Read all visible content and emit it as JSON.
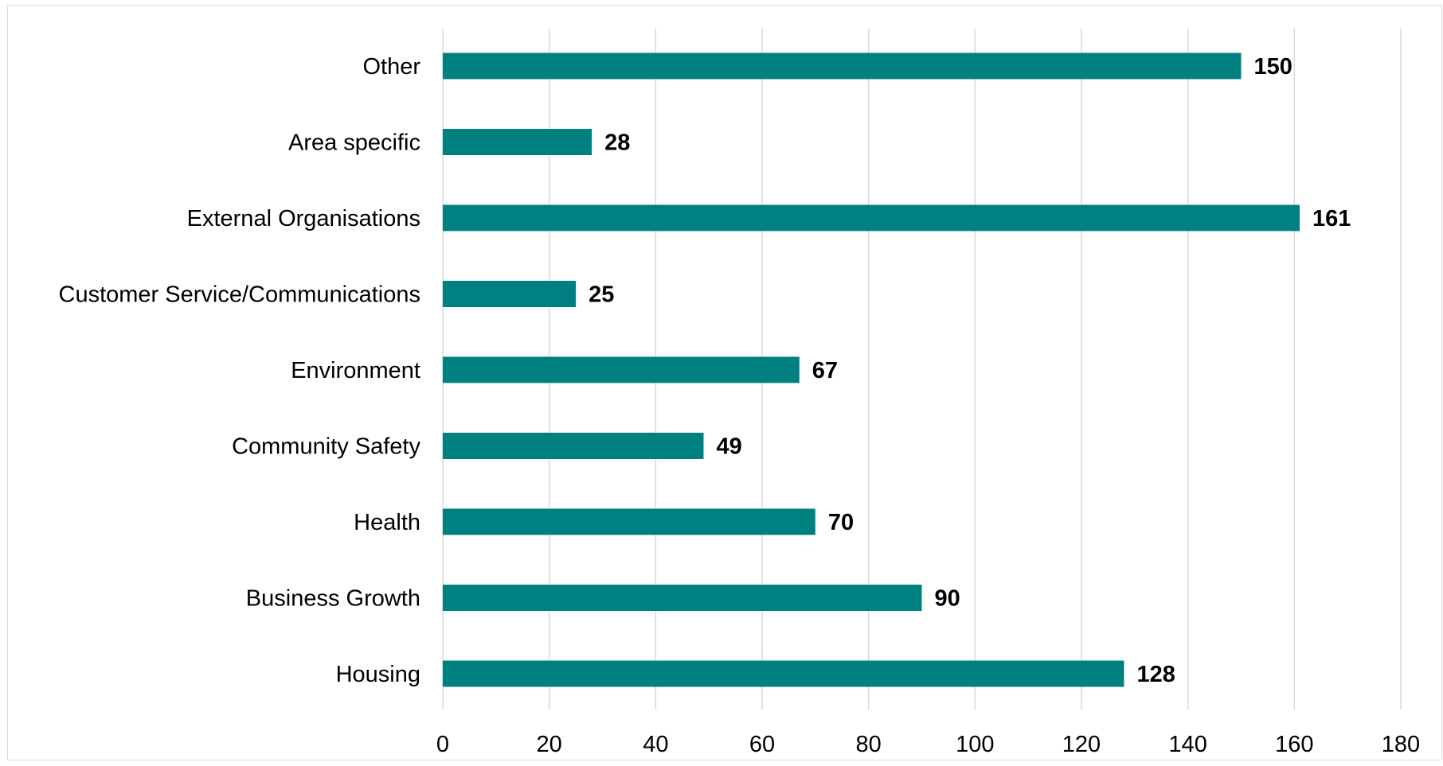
{
  "chart_data": {
    "type": "bar",
    "orientation": "horizontal",
    "categories": [
      "Housing",
      "Business Growth",
      "Health",
      "Community Safety",
      "Environment",
      "Customer Service/Communications",
      "External Organisations",
      "Area specific",
      "Other"
    ],
    "values": [
      128,
      90,
      70,
      49,
      67,
      25,
      161,
      28,
      150
    ],
    "x_ticks": [
      "0",
      "20",
      "40",
      "60",
      "80",
      "100",
      "120",
      "140",
      "160",
      "180"
    ],
    "xlim": [
      0,
      180
    ],
    "title": "",
    "xlabel": "",
    "ylabel": "",
    "grid": "vertical",
    "legend": "none",
    "data_labels": true,
    "bar_color": "#008080",
    "gridline_color": "#d9d9d9"
  }
}
